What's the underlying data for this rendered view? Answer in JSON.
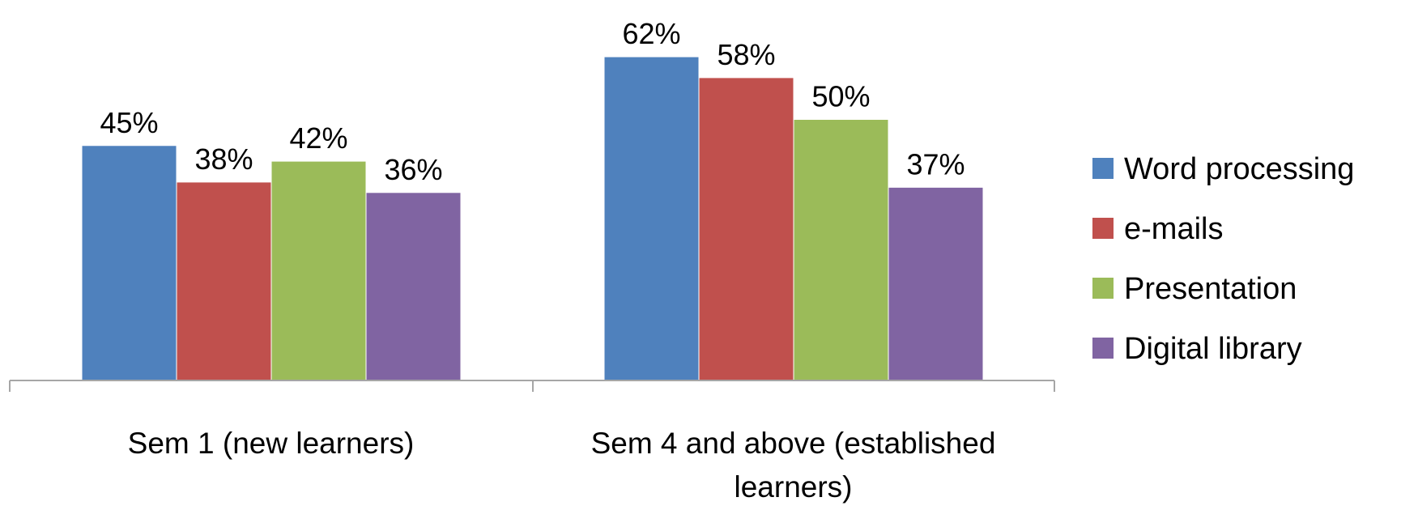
{
  "chart_data": {
    "type": "bar",
    "title": "",
    "xlabel": "",
    "ylabel": "",
    "ylim": [
      0,
      70
    ],
    "grid": false,
    "legend_position": "right",
    "categories": [
      [
        "Sem 1 (new learners)"
      ],
      [
        "Sem 4 and above (established",
        "learners)"
      ]
    ],
    "series": [
      {
        "name": "Word processing",
        "color": "#4F81BD",
        "values": [
          45,
          62
        ],
        "labels": [
          "45%",
          "62%"
        ]
      },
      {
        "name": "e-mails",
        "color": "#C0504D",
        "values": [
          38,
          58
        ],
        "labels": [
          "38%",
          "58%"
        ]
      },
      {
        "name": "Presentation",
        "color": "#9BBB59",
        "values": [
          42,
          50
        ],
        "labels": [
          "42%",
          "50%"
        ]
      },
      {
        "name": "Digital library",
        "color": "#8064A2",
        "values": [
          36,
          37
        ],
        "labels": [
          "36%",
          "37%"
        ]
      }
    ]
  }
}
